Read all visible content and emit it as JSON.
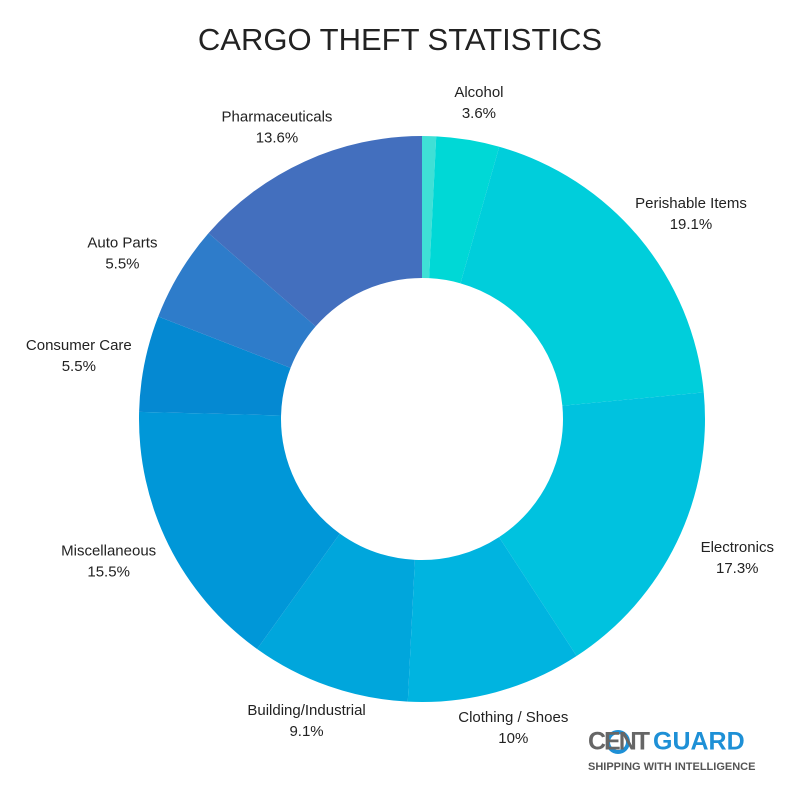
{
  "chart_data": {
    "type": "donut",
    "title": "CARGO THEFT STATISTICS",
    "categories": [
      null,
      "Alcohol",
      "Perishable Items",
      "Electronics",
      "Clothing / Shoes",
      "Building/Industrial",
      "Miscellaneous",
      "Consumer Care",
      "Auto Parts",
      "Pharmaceuticals"
    ],
    "values": [
      0.8,
      3.6,
      19.1,
      17.3,
      10,
      9.1,
      15.5,
      5.5,
      5.5,
      13.6
    ],
    "value_labels": [
      null,
      "3.6%",
      "19.1%",
      "17.3%",
      "10%",
      "9.1%",
      "15.5%",
      "5.5%",
      "5.5%",
      "13.6%"
    ],
    "colors": [
      "#3fe0d6",
      "#00d8d6",
      "#00cedb",
      "#00c2df",
      "#00b4e0",
      "#00a6dc",
      "#0097d8",
      "#0589d2",
      "#2e7cca",
      "#436fbe"
    ]
  },
  "logo": {
    "name_left": "CENT",
    "name_right": "GUARD",
    "tagline": "SHIPPING WITH INTELLIGENCE"
  }
}
